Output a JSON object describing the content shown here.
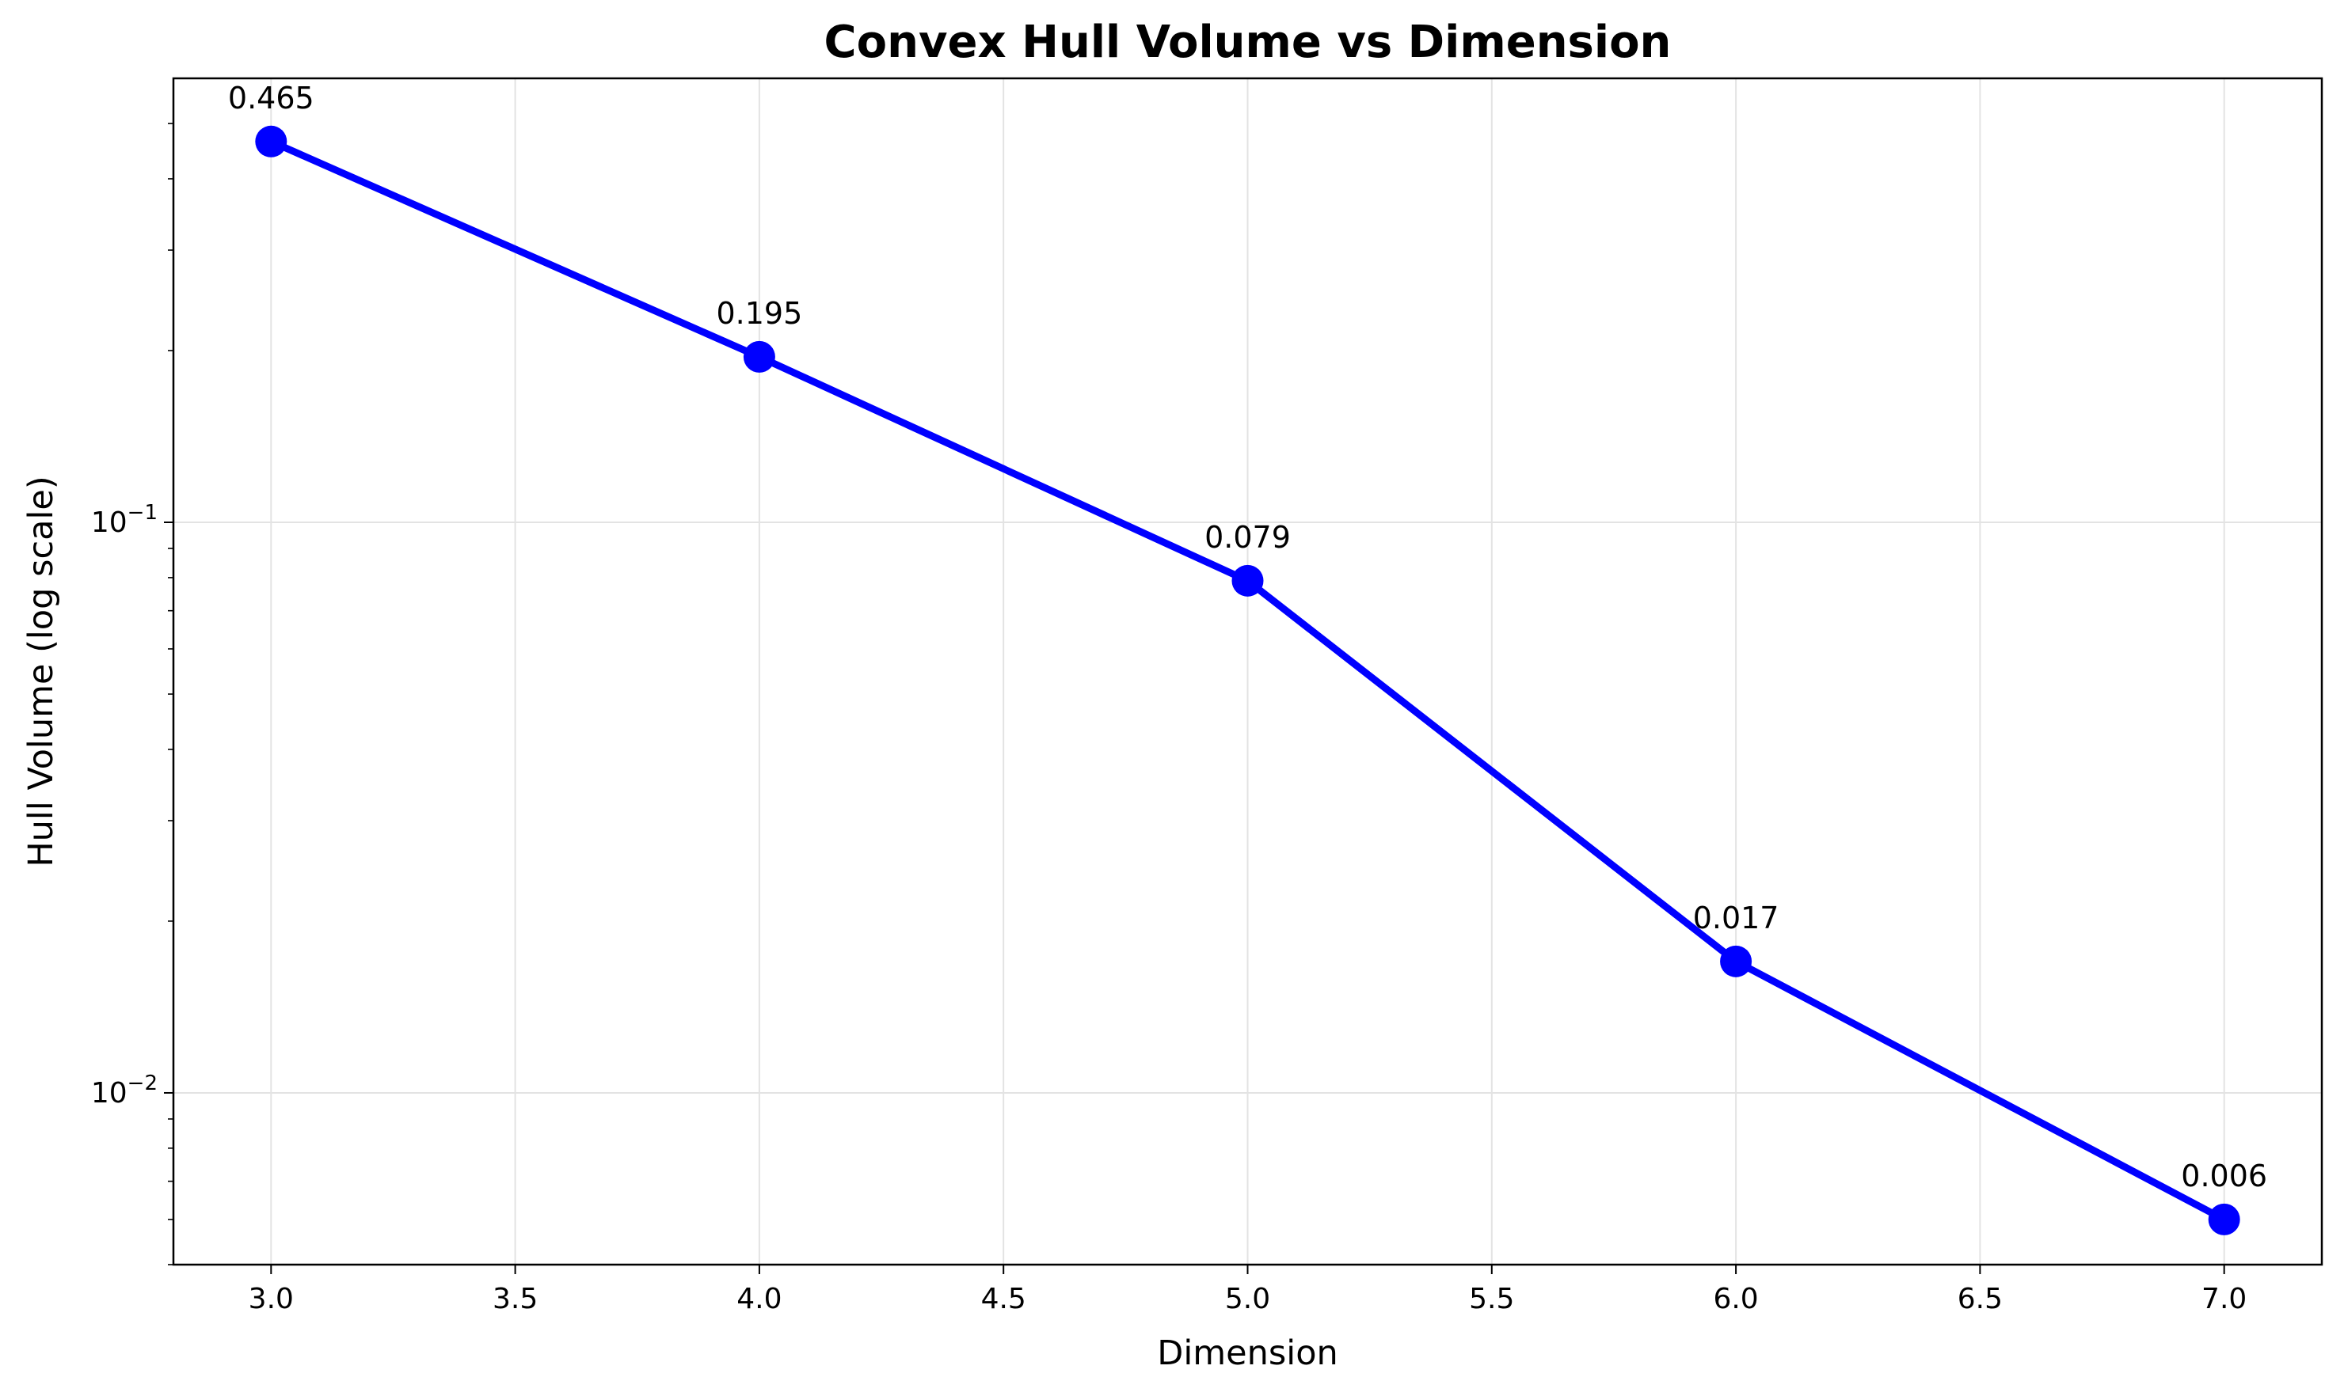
{
  "chart_data": {
    "type": "line",
    "title": "Convex Hull Volume vs Dimension",
    "xlabel": "Dimension",
    "ylabel": "Hull Volume (log scale)",
    "xlim": [
      2.8,
      7.2
    ],
    "ylim": [
      0.005,
      0.6
    ],
    "yscale": "log",
    "grid": true,
    "x_ticks": [
      "3.0",
      "3.5",
      "4.0",
      "4.5",
      "5.0",
      "5.5",
      "6.0",
      "6.5",
      "7.0"
    ],
    "y_major_ticks": [
      0.01,
      0.1
    ],
    "y_tick_labels": [
      {
        "base": "10",
        "exp": "−2"
      },
      {
        "base": "10",
        "exp": "−1"
      }
    ],
    "series": [
      {
        "color": "#0000ff",
        "marker": "circle",
        "x": [
          3,
          4,
          5,
          6,
          7
        ],
        "y": [
          0.465,
          0.195,
          0.079,
          0.017,
          0.006
        ],
        "labels": [
          "0.465",
          "0.195",
          "0.079",
          "0.017",
          "0.006"
        ]
      }
    ]
  }
}
